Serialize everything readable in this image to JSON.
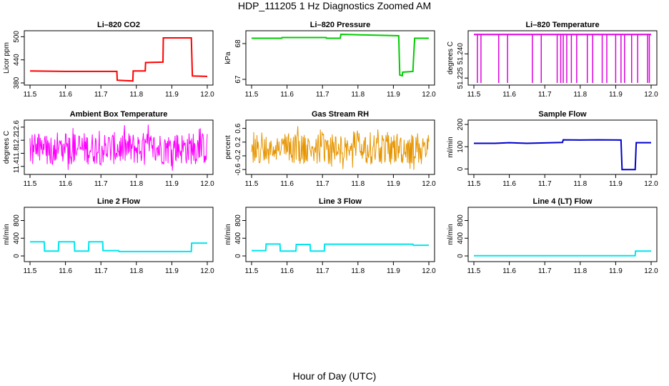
{
  "figure": {
    "title": "HDP_111205  1 Hz Diagnostics Zoomed AM",
    "xlabel": "Hour of Day (UTC)"
  },
  "chart_data": [
    {
      "type": "line",
      "title": "Li–820 CO2",
      "ylabel": "Licor ppm",
      "color": "#ff0000",
      "xlim": [
        11.5,
        12.0
      ],
      "ylim": [
        380,
        510
      ],
      "xticks": [
        "11.5",
        "11.6",
        "11.7",
        "11.8",
        "11.9",
        "12.0"
      ],
      "yticks": [
        380,
        440,
        500
      ],
      "x": [
        11.5,
        11.6,
        11.7,
        11.745,
        11.746,
        11.79,
        11.791,
        11.825,
        11.826,
        11.875,
        11.876,
        11.955,
        11.958,
        12.0
      ],
      "y": [
        411,
        410,
        410,
        410,
        387,
        385,
        411,
        411,
        433,
        434,
        497,
        497,
        398,
        397
      ]
    },
    {
      "type": "line",
      "title": "Li–820 Pressure",
      "ylabel": "kPa",
      "color": "#00cc00",
      "xlim": [
        11.5,
        12.0
      ],
      "ylim": [
        66.9,
        68.3
      ],
      "xticks": [
        "11.5",
        "11.6",
        "11.7",
        "11.8",
        "11.9",
        "12.0"
      ],
      "yticks": [
        67.0,
        68.0
      ],
      "x": [
        11.5,
        11.585,
        11.586,
        11.71,
        11.711,
        11.75,
        11.752,
        11.83,
        11.915,
        11.918,
        11.925,
        11.926,
        11.955,
        11.958,
        11.96,
        12.0
      ],
      "y": [
        68.15,
        68.15,
        68.17,
        68.17,
        68.15,
        68.15,
        68.26,
        68.24,
        68.22,
        67.12,
        67.1,
        67.2,
        67.22,
        67.8,
        68.15,
        68.15
      ]
    },
    {
      "type": "line",
      "title": "Li–820 Temperature",
      "ylabel": "degrees C",
      "color": "#dd00dd",
      "xlim": [
        11.5,
        12.0
      ],
      "ylim": [
        51.222,
        51.253
      ],
      "xticks": [
        "11.5",
        "11.6",
        "11.7",
        "11.8",
        "11.9",
        "12.0"
      ],
      "yticks": [
        "51.225",
        "51.240"
      ],
      "base": 51.252,
      "low": 51.222,
      "spikes": [
        11.51,
        11.52,
        11.57,
        11.595,
        11.665,
        11.69,
        11.735,
        11.745,
        11.752,
        11.762,
        11.775,
        11.79,
        11.82,
        11.835,
        11.862,
        11.875,
        11.9,
        11.915,
        11.925,
        11.945,
        11.962,
        11.99,
        11.995
      ]
    },
    {
      "type": "line",
      "title": "Ambient Box Temperature",
      "ylabel": "degrees C",
      "color": "#ff00ff",
      "xlim": [
        11.5,
        12.0
      ],
      "ylim": [
        11.22,
        12.75
      ],
      "xticks": [
        "11.5",
        "11.6",
        "11.7",
        "11.8",
        "11.9",
        "12.0"
      ],
      "yticks": [
        "11.4",
        "11.8",
        "12.2",
        "12.6"
      ],
      "noise": {
        "center": 11.85,
        "low": 11.45,
        "high": 12.45,
        "min": 11.25,
        "max": 12.72
      }
    },
    {
      "type": "line",
      "title": "Gas Stream RH",
      "ylabel": "percent",
      "color": "#e69500",
      "xlim": [
        11.5,
        12.0
      ],
      "ylim": [
        -0.68,
        0.78
      ],
      "xticks": [
        "11.5",
        "11.6",
        "11.7",
        "11.8",
        "11.9",
        "12.0"
      ],
      "yticks": [
        "-0.6",
        "-0.2",
        "0.2",
        "0.6"
      ],
      "noise": {
        "center": -0.02,
        "low": -0.45,
        "high": 0.5,
        "min": -0.65,
        "max": 0.75
      }
    },
    {
      "type": "line",
      "title": "Sample Flow",
      "ylabel": "ml/min",
      "color": "#0000cc",
      "xlim": [
        11.5,
        12.0
      ],
      "ylim": [
        -15,
        210
      ],
      "xticks": [
        "11.5",
        "11.6",
        "11.7",
        "11.8",
        "11.9",
        "12.0"
      ],
      "yticks": [
        0,
        100,
        200
      ],
      "x": [
        11.5,
        11.56,
        11.6,
        11.65,
        11.7,
        11.75,
        11.752,
        11.8,
        11.85,
        11.915,
        11.918,
        11.955,
        11.958,
        12.0
      ],
      "y": [
        115,
        115,
        118,
        115,
        117,
        119,
        131,
        130,
        131,
        130,
        -3,
        -3,
        118,
        118
      ]
    },
    {
      "type": "line",
      "title": "Line 2 Flow",
      "ylabel": "ml/min",
      "color": "#00e5ee",
      "xlim": [
        11.5,
        12.0
      ],
      "ylim": [
        -80,
        1050
      ],
      "xticks": [
        "11.5",
        "11.6",
        "11.7",
        "11.8",
        "11.9",
        "12.0"
      ],
      "yticks": [
        0,
        400,
        800
      ],
      "x": [
        11.5,
        11.54,
        11.541,
        11.58,
        11.581,
        11.625,
        11.626,
        11.665,
        11.666,
        11.705,
        11.706,
        11.75,
        11.751,
        11.955,
        11.956,
        12.0
      ],
      "y": [
        320,
        320,
        110,
        110,
        320,
        320,
        110,
        110,
        320,
        320,
        120,
        120,
        100,
        100,
        290,
        290
      ]
    },
    {
      "type": "line",
      "title": "Line 3 Flow",
      "ylabel": "ml/min",
      "color": "#00e5ee",
      "xlim": [
        11.5,
        12.0
      ],
      "ylim": [
        -80,
        1050
      ],
      "xticks": [
        "11.5",
        "11.6",
        "11.7",
        "11.8",
        "11.9",
        "12.0"
      ],
      "yticks": [
        0,
        400,
        800
      ],
      "x": [
        11.5,
        11.54,
        11.541,
        11.58,
        11.581,
        11.625,
        11.626,
        11.665,
        11.666,
        11.705,
        11.706,
        11.955,
        11.956,
        12.0
      ],
      "y": [
        120,
        120,
        270,
        270,
        110,
        110,
        260,
        260,
        110,
        110,
        265,
        265,
        240,
        240
      ]
    },
    {
      "type": "line",
      "title": "Line 4 (LT) Flow",
      "ylabel": "ml/min",
      "color": "#00e5ee",
      "xlim": [
        11.5,
        12.0
      ],
      "ylim": [
        -80,
        1050
      ],
      "xticks": [
        "11.5",
        "11.6",
        "11.7",
        "11.8",
        "11.9",
        "12.0"
      ],
      "yticks": [
        0,
        400,
        800
      ],
      "x": [
        11.5,
        11.955,
        11.956,
        12.0
      ],
      "y": [
        5,
        5,
        110,
        110
      ]
    }
  ]
}
